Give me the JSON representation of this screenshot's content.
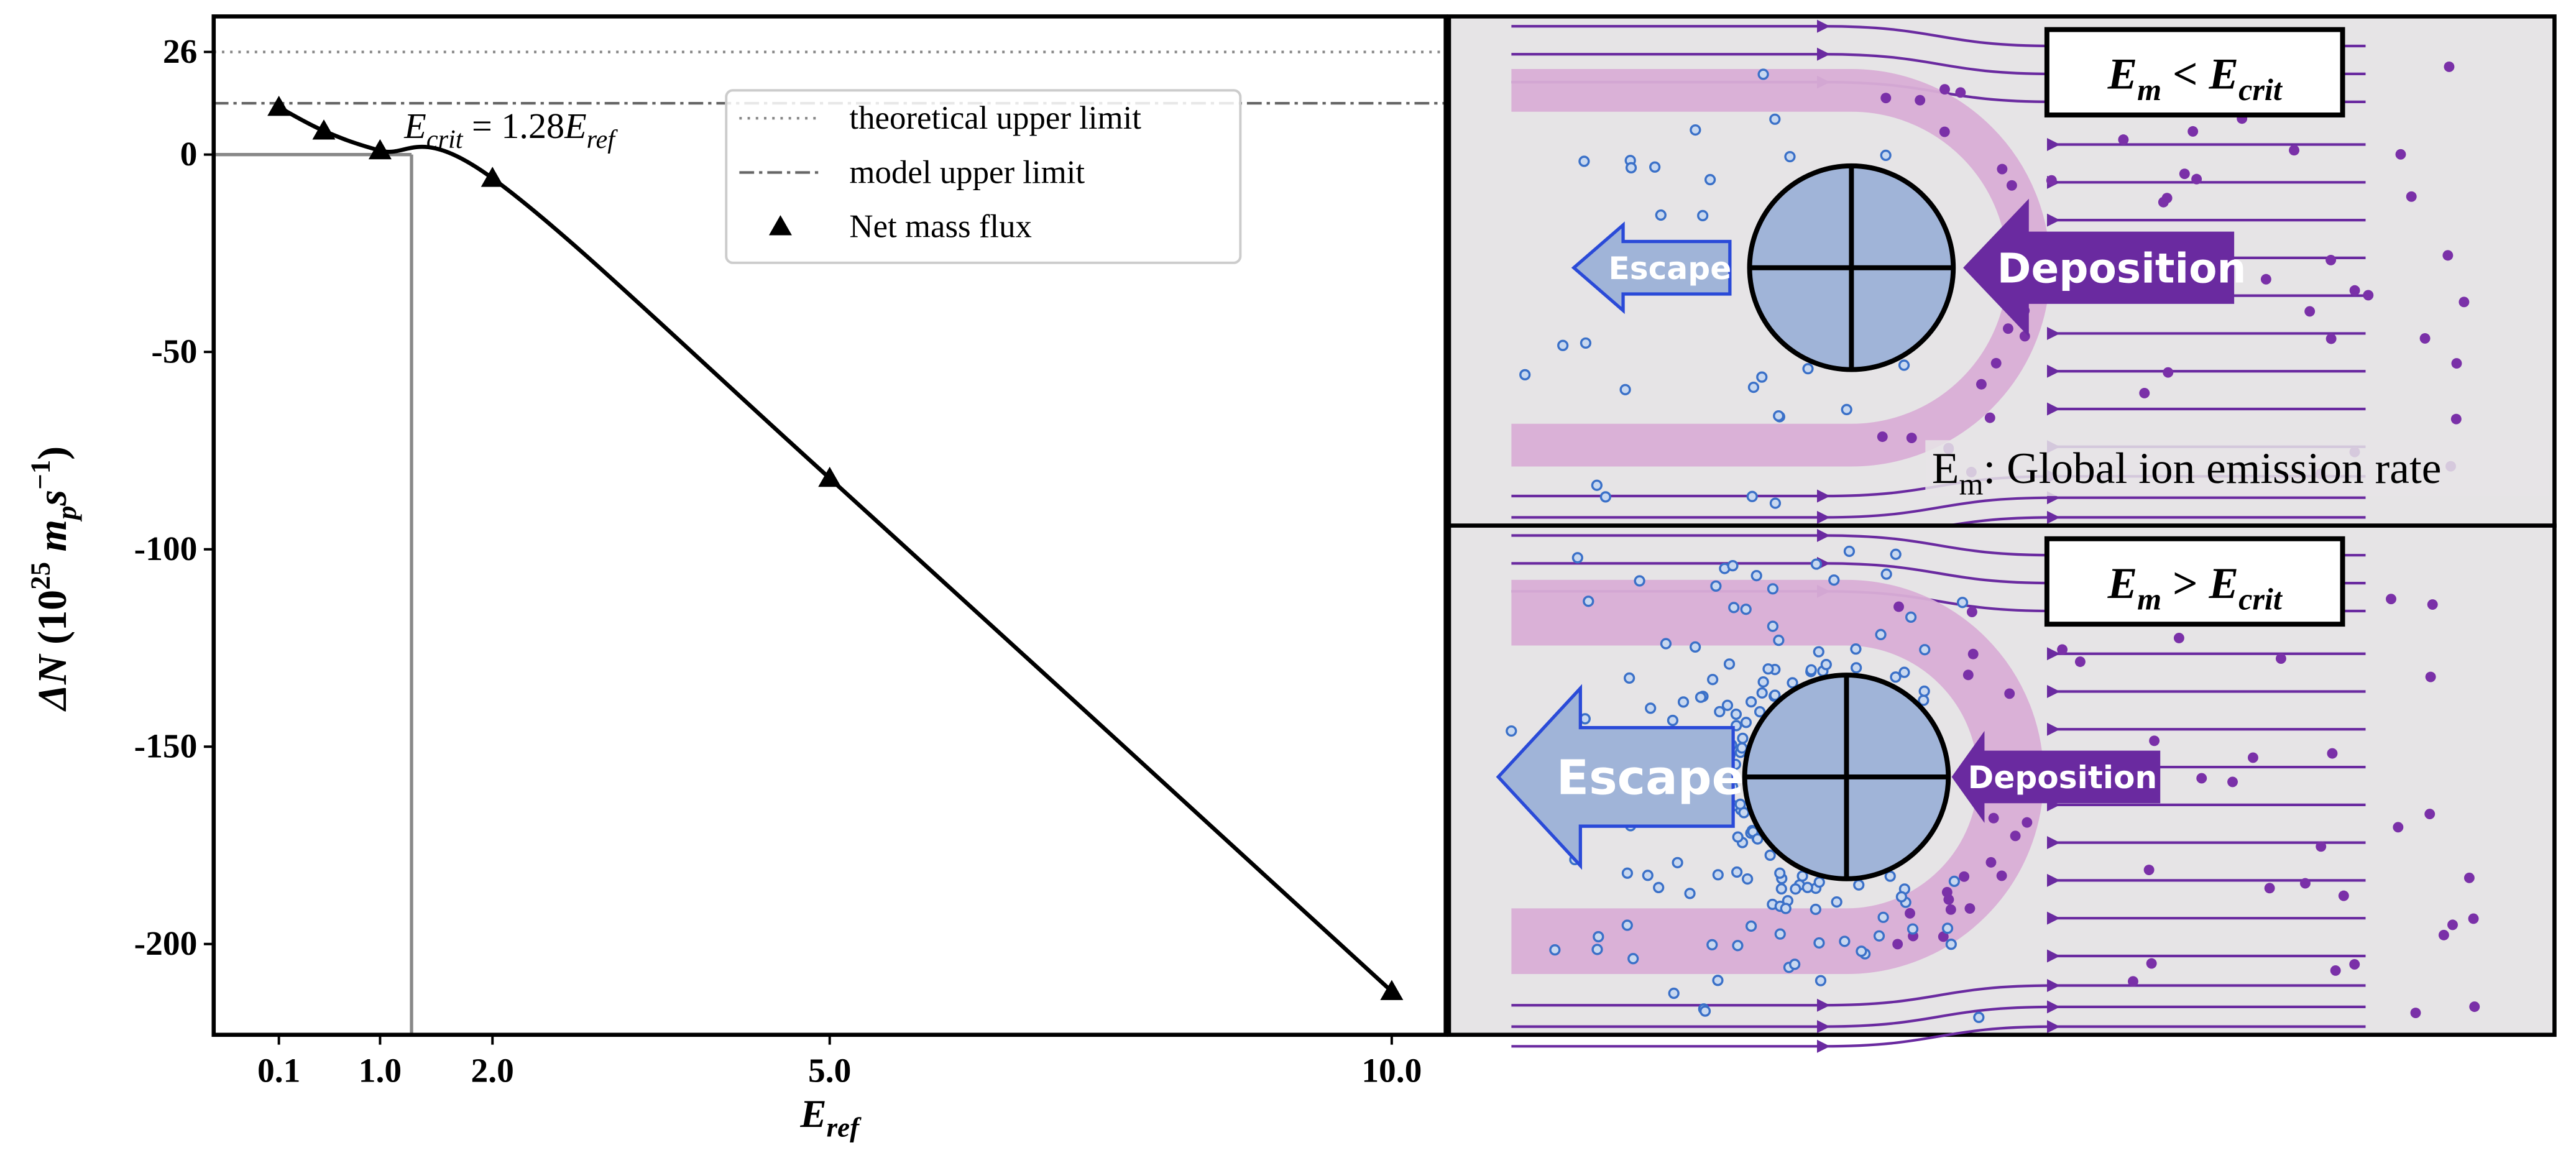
{
  "chart_data": {
    "type": "scatter",
    "x_label": [
      "E",
      "ref"
    ],
    "y_label": [
      "ΔN",
      "  (10",
      "25",
      " m",
      "p",
      "s",
      "−1",
      ")"
    ],
    "xlim": [
      -0.48,
      10.48
    ],
    "ylim": [
      -223,
      35
    ],
    "xticks": [
      0.1,
      {
        "value": 1,
        "label": "1.0"
      },
      {
        "value": 2,
        "label": "2.0"
      },
      {
        "value": 5,
        "label": "5.0"
      },
      {
        "value": 10,
        "label": "10.0"
      }
    ],
    "yticks": [
      26,
      0,
      -50,
      -100,
      -150,
      -200
    ],
    "x": [
      0.1,
      0.5,
      1,
      2,
      5,
      10
    ],
    "series": [
      {
        "name": "Net mass flux",
        "color": "#000000",
        "marker": "triangle",
        "values": [
          12,
          6,
          1,
          -6,
          -82,
          -212
        ]
      }
    ],
    "fit_line": true,
    "reference_lines": [
      {
        "name": "theoretical upper limit",
        "value": 26,
        "style": "dotted",
        "color": "#888888"
      },
      {
        "name": "model upper limit",
        "value": 13,
        "style": "dashdot",
        "color": "#666666"
      }
    ],
    "critical_x": 1.28,
    "annotation": [
      "E",
      "crit",
      " = 1.28",
      "E",
      "ref"
    ]
  },
  "diagram": {
    "top": {
      "title": [
        "E",
        "m",
        " < ",
        "E",
        "crit"
      ],
      "escape": "Escape",
      "deposition": "Deposition",
      "note": [
        "E",
        "m",
        ": Global ion emission rate"
      ]
    },
    "bottom": {
      "title": [
        "E",
        "m",
        " > ",
        "E",
        "crit"
      ],
      "escape": "Escape",
      "deposition": "Deposition"
    }
  }
}
